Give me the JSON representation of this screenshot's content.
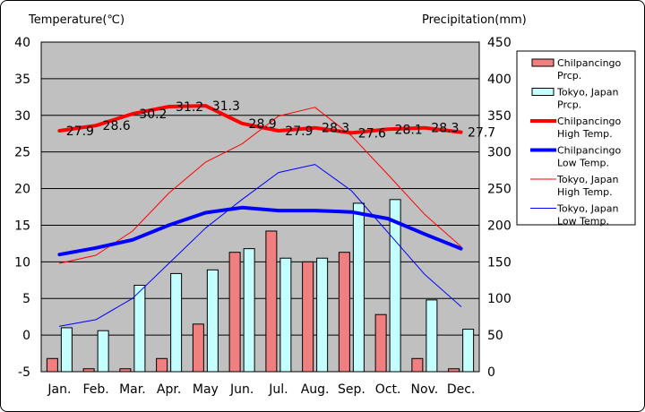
{
  "chart_data": {
    "type": "bar+line",
    "categories": [
      "Jan.",
      "Feb.",
      "Mar.",
      "Apr.",
      "May",
      "Jun.",
      "Jul.",
      "Aug.",
      "Sep.",
      "Oct.",
      "Nov.",
      "Dec."
    ],
    "left_axis": {
      "label": "Temperature(℃)",
      "ylim": [
        -5,
        40
      ],
      "ticks": [
        -5,
        0,
        5,
        10,
        15,
        20,
        25,
        30,
        35,
        40
      ]
    },
    "right_axis": {
      "label": "Precipitation(mm)",
      "ylim": [
        0,
        450
      ],
      "ticks": [
        0,
        50,
        100,
        150,
        200,
        250,
        300,
        350,
        400,
        450
      ]
    },
    "grid": true,
    "series": [
      {
        "name": "Chilpancingo Prcp.",
        "legend_lines": [
          "Chilpancingo",
          "Prcp."
        ],
        "kind": "bar",
        "axis": "right",
        "color": "#f08080",
        "values": [
          18,
          4,
          4,
          18,
          65,
          163,
          192,
          150,
          163,
          78,
          18,
          4
        ]
      },
      {
        "name": "Tokyo, Japan Prcp.",
        "legend_lines": [
          "Tokyo, Japan",
          "Prcp."
        ],
        "kind": "bar",
        "axis": "right",
        "color": "#c4ffff",
        "values": [
          60,
          56,
          118,
          134,
          139,
          168,
          155,
          155,
          230,
          235,
          98,
          58
        ]
      },
      {
        "name": "Chilpancingo High Temp.",
        "legend_lines": [
          "Chilpancingo",
          "High Temp."
        ],
        "kind": "line",
        "axis": "left",
        "color": "#ff0000",
        "width": 4,
        "values": [
          27.9,
          28.6,
          30.2,
          31.2,
          31.3,
          28.9,
          27.9,
          28.3,
          27.6,
          28.1,
          28.3,
          27.7
        ],
        "labels": [
          "27.9",
          "28.6",
          "30.2",
          "31.2",
          "31.3",
          "28.9",
          "27.9",
          "28.3",
          "27.6",
          "28.1",
          "28.3",
          "27.7"
        ]
      },
      {
        "name": "Chilpancingo Low Temp.",
        "legend_lines": [
          "Chilpancingo",
          "Low Temp."
        ],
        "kind": "line",
        "axis": "left",
        "color": "#0000ff",
        "width": 4,
        "values": [
          11.0,
          11.9,
          13.0,
          15.0,
          16.7,
          17.4,
          17.0,
          17.0,
          16.8,
          15.9,
          13.8,
          11.8
        ]
      },
      {
        "name": "Tokyo, Japan High Temp.",
        "legend_lines": [
          "Tokyo, Japan",
          "High Temp."
        ],
        "kind": "line",
        "axis": "left",
        "color": "#ff0000",
        "width": 1,
        "values": [
          9.8,
          10.9,
          14.2,
          19.4,
          23.6,
          26.1,
          29.9,
          31.1,
          27.2,
          21.9,
          16.5,
          12.1
        ]
      },
      {
        "name": "Tokyo, Japan Low Temp.",
        "legend_lines": [
          "Tokyo, Japan",
          "Low Temp."
        ],
        "kind": "line",
        "axis": "left",
        "color": "#0000ff",
        "width": 1,
        "values": [
          1.2,
          2.1,
          5.0,
          9.8,
          14.6,
          18.5,
          22.2,
          23.3,
          19.7,
          14.0,
          8.3,
          3.9
        ]
      }
    ]
  }
}
